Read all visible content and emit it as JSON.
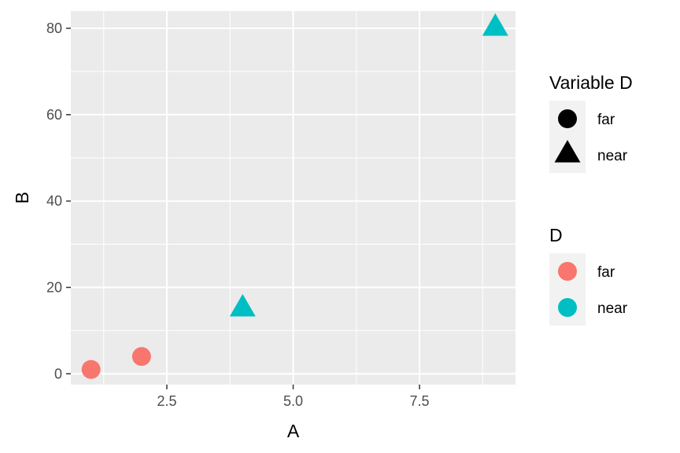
{
  "chart_data": {
    "type": "scatter",
    "xlabel": "A",
    "ylabel": "B",
    "xlim": [
      0.6,
      9.4
    ],
    "ylim": [
      -2.5,
      84
    ],
    "x_ticks": [
      2.5,
      5.0,
      7.5
    ],
    "x_tick_labels": [
      "2.5",
      "5.0",
      "7.5"
    ],
    "x_minor_ticks": [
      1.25,
      3.75,
      6.25,
      8.75
    ],
    "y_ticks": [
      0,
      20,
      40,
      60,
      80
    ],
    "y_tick_labels": [
      "0",
      "20",
      "40",
      "60",
      "80"
    ],
    "y_minor_ticks": [
      10,
      30,
      50,
      70
    ],
    "grid": true,
    "legend_position": "right",
    "points": [
      {
        "x": 1,
        "y": 1,
        "D": "far"
      },
      {
        "x": 2,
        "y": 4,
        "D": "far"
      },
      {
        "x": 4,
        "y": 15,
        "D": "near"
      },
      {
        "x": 9,
        "y": 80,
        "D": "near"
      }
    ],
    "colors": {
      "far": "#F8766D",
      "near": "#00BFC4"
    },
    "shapes": {
      "far": "circle",
      "near": "triangle"
    },
    "legends": [
      {
        "title": "Variable D",
        "kind": "shape",
        "entries": [
          {
            "label": "far",
            "shape": "circle"
          },
          {
            "label": "near",
            "shape": "triangle"
          }
        ]
      },
      {
        "title": "D",
        "kind": "color",
        "entries": [
          {
            "label": "far",
            "color": "#F8766D"
          },
          {
            "label": "near",
            "color": "#00BFC4"
          }
        ]
      }
    ]
  }
}
